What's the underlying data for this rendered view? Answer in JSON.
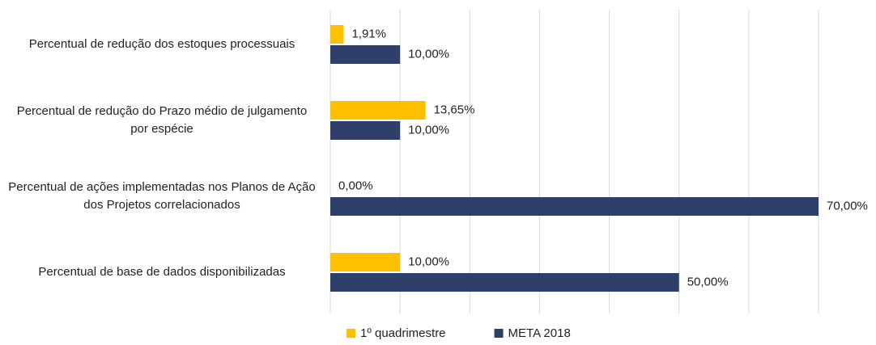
{
  "chart_data": {
    "type": "bar",
    "orientation": "horizontal",
    "categories": [
      "Percentual de redução dos estoques processuais",
      "Percentual de redução do Prazo médio de julgamento por espécie",
      "Percentual de ações implementadas nos Planos de Ação dos Projetos correlacionados",
      "Percentual de base de dados disponibilizadas"
    ],
    "series": [
      {
        "name": "1º quadrimestre",
        "color": "#FFC000",
        "values": [
          1.91,
          13.65,
          0,
          10
        ],
        "value_labels": [
          "1,91%",
          "13,65%",
          "0,00%",
          "10,00%"
        ]
      },
      {
        "name": "META 2018",
        "color": "#2E3F6A",
        "values": [
          10,
          10,
          70,
          50
        ],
        "value_labels": [
          "10,00%",
          "10,00%",
          "70,00%",
          "50,00%"
        ]
      }
    ],
    "xlim": [
      0,
      70
    ],
    "xticks": [
      0,
      10,
      20,
      30,
      40,
      50,
      60,
      70
    ],
    "grid": true,
    "legend": "bottom"
  }
}
